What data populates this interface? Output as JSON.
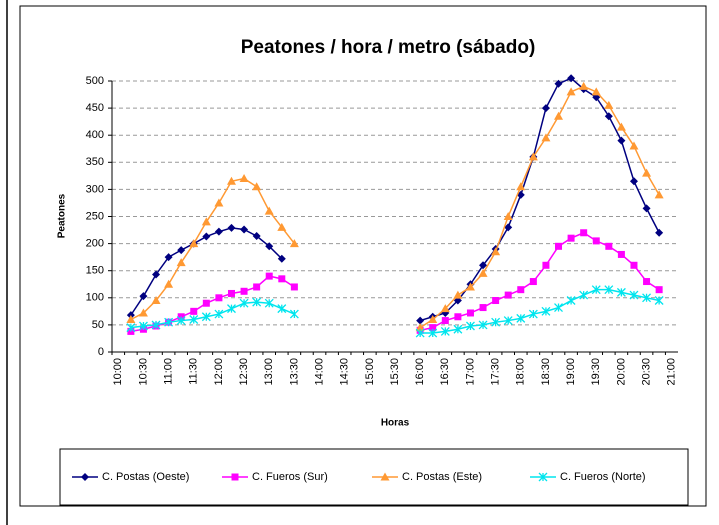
{
  "chart_data": {
    "type": "line",
    "title": "Peatones / hora / metro (sábado)",
    "x_label": "Horas",
    "y_label": "Peatones",
    "categories": [
      "10:00",
      null,
      "10:30",
      null,
      "11:00",
      null,
      "11:30",
      null,
      "12:00",
      null,
      "12:30",
      null,
      "13:00",
      null,
      "13:30",
      null,
      "14:00",
      null,
      "14:30",
      null,
      "15:00",
      null,
      "15:30",
      null,
      "16:00",
      null,
      "16:30",
      null,
      "17:00",
      null,
      "17:30",
      null,
      "18:00",
      null,
      "18:30",
      null,
      "19:00",
      null,
      "19:30",
      null,
      "20:00",
      null,
      "20:30",
      null,
      "21:00"
    ],
    "ylim": [
      0,
      500
    ],
    "yticks": [
      0,
      50,
      100,
      150,
      200,
      250,
      300,
      350,
      400,
      450,
      500
    ],
    "grid": true,
    "series": [
      {
        "name": "C. Postas (Oeste)",
        "color": "#000080",
        "marker": "diamond",
        "values": [
          null,
          68,
          103,
          143,
          175,
          188,
          200,
          213,
          222,
          229,
          226,
          214,
          195,
          172,
          null,
          null,
          null,
          null,
          null,
          null,
          null,
          null,
          null,
          null,
          58,
          65,
          72,
          95,
          125,
          160,
          190,
          230,
          290,
          360,
          450,
          495,
          505,
          485,
          470,
          435,
          390,
          315,
          265,
          220,
          null
        ]
      },
      {
        "name": "C. Fueros (Sur)",
        "color": "#ff00ff",
        "marker": "square",
        "values": [
          null,
          38,
          42,
          48,
          55,
          65,
          75,
          90,
          100,
          108,
          112,
          120,
          140,
          135,
          120,
          null,
          null,
          null,
          null,
          null,
          null,
          null,
          null,
          null,
          40,
          45,
          58,
          65,
          72,
          82,
          95,
          105,
          115,
          130,
          160,
          195,
          210,
          220,
          205,
          195,
          180,
          160,
          130,
          115,
          null
        ]
      },
      {
        "name": "C. Postas (Este)",
        "color": "#ff9933",
        "marker": "triangle",
        "values": [
          null,
          60,
          72,
          95,
          125,
          165,
          200,
          240,
          275,
          315,
          320,
          305,
          260,
          230,
          200,
          null,
          null,
          null,
          null,
          null,
          null,
          null,
          null,
          null,
          45,
          60,
          80,
          105,
          120,
          145,
          185,
          250,
          305,
          360,
          395,
          435,
          480,
          490,
          480,
          455,
          415,
          380,
          330,
          290,
          null
        ]
      },
      {
        "name": "C. Fueros (Norte)",
        "color": "#00e5ee",
        "marker": "star",
        "values": [
          null,
          45,
          48,
          50,
          55,
          58,
          60,
          65,
          70,
          80,
          90,
          92,
          90,
          80,
          70,
          null,
          null,
          null,
          null,
          null,
          null,
          null,
          null,
          null,
          35,
          35,
          38,
          42,
          48,
          50,
          55,
          58,
          62,
          70,
          75,
          82,
          95,
          105,
          115,
          115,
          110,
          105,
          100,
          95,
          null
        ]
      }
    ]
  }
}
